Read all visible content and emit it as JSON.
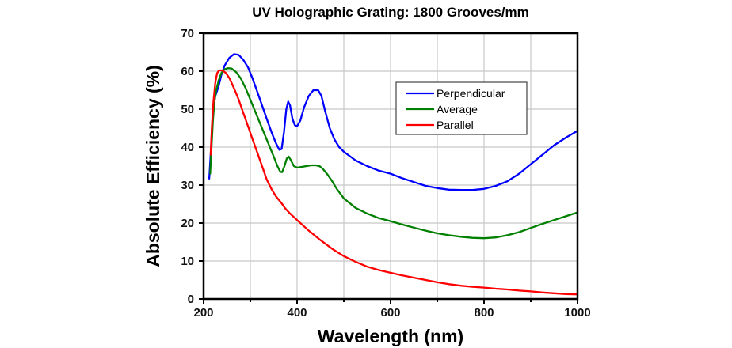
{
  "chart_data": {
    "type": "line",
    "title": "UV Holographic Grating: 1800 Grooves/mm",
    "xlabel": "Wavelength (nm)",
    "ylabel": "Absolute Efficiency (%)",
    "xlim": [
      200,
      1000
    ],
    "ylim": [
      0,
      70
    ],
    "x_ticks": [
      200,
      400,
      600,
      800,
      1000
    ],
    "x_minor_ticks": [
      300,
      500,
      700,
      900
    ],
    "y_ticks": [
      0,
      10,
      20,
      30,
      40,
      50,
      60,
      70
    ],
    "grid": true,
    "legend_position": "top-right",
    "series": [
      {
        "name": "Perpendicular",
        "color": "#0000ff",
        "points": [
          [
            212,
            31.7
          ],
          [
            215,
            38
          ],
          [
            218,
            45
          ],
          [
            221,
            50.5
          ],
          [
            225,
            53.5
          ],
          [
            228,
            54.5
          ],
          [
            232,
            56
          ],
          [
            238,
            59
          ],
          [
            245,
            61.5
          ],
          [
            255,
            63.5
          ],
          [
            265,
            64.5
          ],
          [
            275,
            64.3
          ],
          [
            285,
            63
          ],
          [
            295,
            61
          ],
          [
            305,
            58
          ],
          [
            315,
            54.5
          ],
          [
            325,
            51
          ],
          [
            335,
            47.5
          ],
          [
            345,
            44
          ],
          [
            355,
            41
          ],
          [
            362,
            39.3
          ],
          [
            367,
            39.5
          ],
          [
            372,
            44
          ],
          [
            377,
            50
          ],
          [
            381,
            52
          ],
          [
            385,
            51
          ],
          [
            390,
            47.5
          ],
          [
            395,
            45.8
          ],
          [
            400,
            45.5
          ],
          [
            407,
            47
          ],
          [
            415,
            50.5
          ],
          [
            425,
            53.5
          ],
          [
            435,
            55
          ],
          [
            445,
            55
          ],
          [
            452,
            53.5
          ],
          [
            460,
            49.5
          ],
          [
            470,
            45
          ],
          [
            480,
            42
          ],
          [
            490,
            40
          ],
          [
            500,
            38.8
          ],
          [
            525,
            36.5
          ],
          [
            550,
            35
          ],
          [
            575,
            33.8
          ],
          [
            600,
            33
          ],
          [
            625,
            31.8
          ],
          [
            650,
            30.8
          ],
          [
            675,
            29.8
          ],
          [
            700,
            29.2
          ],
          [
            725,
            28.8
          ],
          [
            750,
            28.7
          ],
          [
            775,
            28.7
          ],
          [
            800,
            29
          ],
          [
            825,
            29.8
          ],
          [
            850,
            31
          ],
          [
            875,
            33
          ],
          [
            900,
            35.5
          ],
          [
            925,
            38
          ],
          [
            950,
            40.5
          ],
          [
            975,
            42.5
          ],
          [
            1000,
            44.3
          ]
        ]
      },
      {
        "name": "Average",
        "color": "#008000",
        "points": [
          [
            214,
            33
          ],
          [
            217,
            40
          ],
          [
            220,
            47
          ],
          [
            223,
            52
          ],
          [
            227,
            55
          ],
          [
            232,
            57.5
          ],
          [
            238,
            59.5
          ],
          [
            245,
            60.5
          ],
          [
            252,
            60.8
          ],
          [
            260,
            60.7
          ],
          [
            270,
            59.7
          ],
          [
            280,
            58
          ],
          [
            290,
            55.5
          ],
          [
            300,
            52.5
          ],
          [
            310,
            49.5
          ],
          [
            320,
            46.5
          ],
          [
            330,
            43.5
          ],
          [
            340,
            40.5
          ],
          [
            350,
            37.5
          ],
          [
            358,
            35
          ],
          [
            364,
            33.5
          ],
          [
            368,
            33.4
          ],
          [
            373,
            35
          ],
          [
            378,
            37
          ],
          [
            382,
            37.5
          ],
          [
            387,
            36.5
          ],
          [
            393,
            35
          ],
          [
            400,
            34.6
          ],
          [
            410,
            34.8
          ],
          [
            420,
            35
          ],
          [
            430,
            35.2
          ],
          [
            440,
            35.2
          ],
          [
            448,
            35
          ],
          [
            455,
            34.3
          ],
          [
            465,
            32.8
          ],
          [
            475,
            31
          ],
          [
            485,
            29
          ],
          [
            500,
            26.5
          ],
          [
            525,
            24
          ],
          [
            550,
            22.5
          ],
          [
            575,
            21.3
          ],
          [
            600,
            20.5
          ],
          [
            625,
            19.6
          ],
          [
            650,
            18.8
          ],
          [
            675,
            18
          ],
          [
            700,
            17.3
          ],
          [
            725,
            16.8
          ],
          [
            750,
            16.4
          ],
          [
            775,
            16.1
          ],
          [
            800,
            16
          ],
          [
            825,
            16.2
          ],
          [
            850,
            16.8
          ],
          [
            875,
            17.6
          ],
          [
            900,
            18.7
          ],
          [
            925,
            19.8
          ],
          [
            950,
            20.8
          ],
          [
            975,
            21.8
          ],
          [
            1000,
            22.8
          ]
        ]
      },
      {
        "name": "Parallel",
        "color": "#ff0000",
        "points": [
          [
            215,
            38
          ],
          [
            218,
            46
          ],
          [
            221,
            52
          ],
          [
            225,
            57
          ],
          [
            229,
            59.5
          ],
          [
            233,
            60.2
          ],
          [
            240,
            60.2
          ],
          [
            248,
            59.5
          ],
          [
            256,
            58
          ],
          [
            265,
            55.5
          ],
          [
            275,
            52.5
          ],
          [
            285,
            49
          ],
          [
            295,
            45.5
          ],
          [
            305,
            42
          ],
          [
            315,
            38.5
          ],
          [
            325,
            35
          ],
          [
            335,
            31.5
          ],
          [
            345,
            29
          ],
          [
            355,
            27
          ],
          [
            365,
            25.5
          ],
          [
            375,
            23.8
          ],
          [
            385,
            22.5
          ],
          [
            400,
            20.8
          ],
          [
            425,
            18
          ],
          [
            450,
            15.5
          ],
          [
            475,
            13.2
          ],
          [
            500,
            11.3
          ],
          [
            525,
            9.8
          ],
          [
            550,
            8.5
          ],
          [
            575,
            7.6
          ],
          [
            600,
            6.9
          ],
          [
            625,
            6.2
          ],
          [
            650,
            5.6
          ],
          [
            675,
            5
          ],
          [
            700,
            4.4
          ],
          [
            725,
            3.9
          ],
          [
            750,
            3.5
          ],
          [
            775,
            3.2
          ],
          [
            800,
            3
          ],
          [
            825,
            2.7
          ],
          [
            850,
            2.5
          ],
          [
            875,
            2.2
          ],
          [
            900,
            2
          ],
          [
            925,
            1.7
          ],
          [
            950,
            1.5
          ],
          [
            975,
            1.3
          ],
          [
            1000,
            1.2
          ]
        ]
      }
    ]
  }
}
